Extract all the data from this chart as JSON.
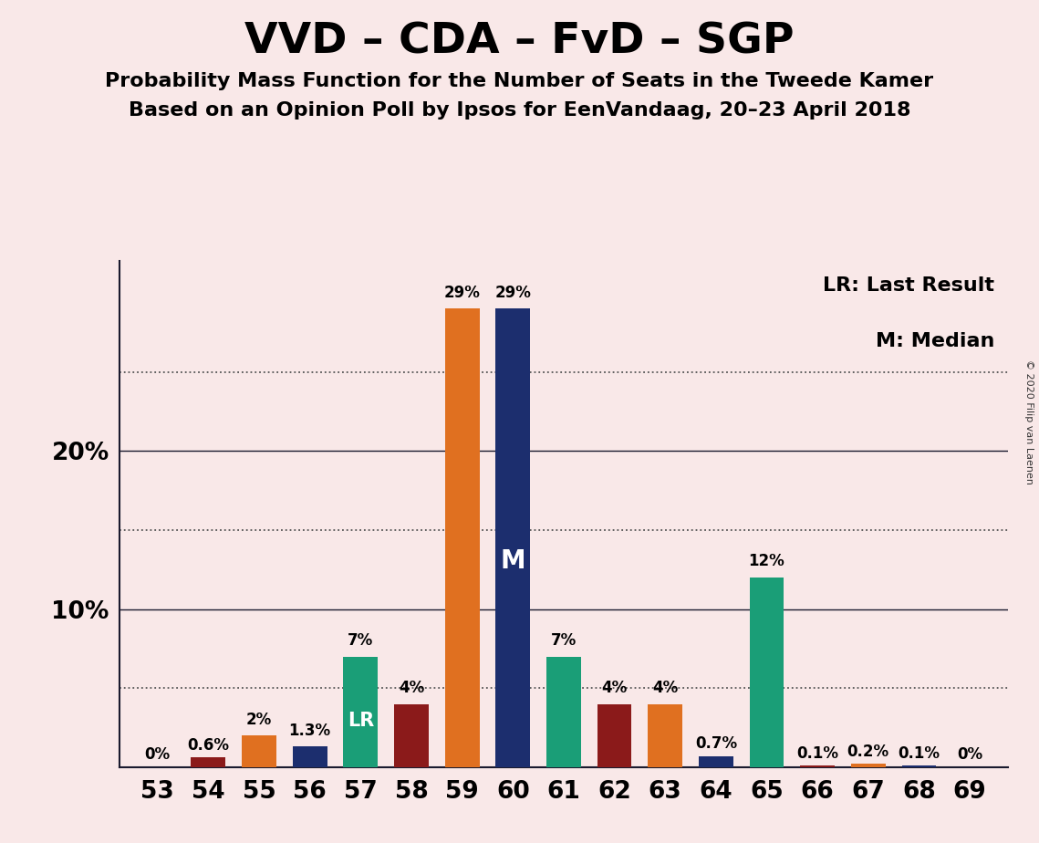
{
  "title": "VVD – CDA – FvD – SGP",
  "subtitle1": "Probability Mass Function for the Number of Seats in the Tweede Kamer",
  "subtitle2": "Based on an Opinion Poll by Ipsos for EenVandaag, 20–23 April 2018",
  "copyright": "© 2020 Filip van Laenen",
  "legend_lr": "LR: Last Result",
  "legend_m": "M: Median",
  "seats": [
    53,
    54,
    55,
    56,
    57,
    58,
    59,
    60,
    61,
    62,
    63,
    64,
    65,
    66,
    67,
    68,
    69
  ],
  "values": [
    0.0,
    0.6,
    2.0,
    1.3,
    7.0,
    4.0,
    29.0,
    29.0,
    7.0,
    4.0,
    4.0,
    0.7,
    12.0,
    0.1,
    0.2,
    0.1,
    0.0
  ],
  "colors": [
    "#1a9e77",
    "#8b1a1a",
    "#e07020",
    "#1c2e6e",
    "#1a9e77",
    "#8b1a1a",
    "#e07020",
    "#1c2e6e",
    "#1a9e77",
    "#8b1a1a",
    "#e07020",
    "#1c2e6e",
    "#1a9e77",
    "#8b1a1a",
    "#e07020",
    "#1c2e6e",
    "#1a9e77"
  ],
  "labels": [
    "0%",
    "0.6%",
    "2%",
    "1.3%",
    "7%",
    "4%",
    "29%",
    "29%",
    "7%",
    "4%",
    "4%",
    "0.7%",
    "12%",
    "0.1%",
    "0.2%",
    "0.1%",
    "0%"
  ],
  "lr_seat": 57,
  "median_seat": 60,
  "background_color": "#f9e8e8",
  "ylim": [
    0,
    32
  ],
  "solid_ticks": [
    10,
    20
  ],
  "dotted_ticks": [
    5,
    15,
    25
  ],
  "title_fontsize": 34,
  "subtitle_fontsize": 16,
  "bar_width": 0.68,
  "label_fontsize": 12,
  "axis_fontsize": 19,
  "lr_fontsize": 15,
  "m_fontsize": 20,
  "legend_fontsize": 16
}
